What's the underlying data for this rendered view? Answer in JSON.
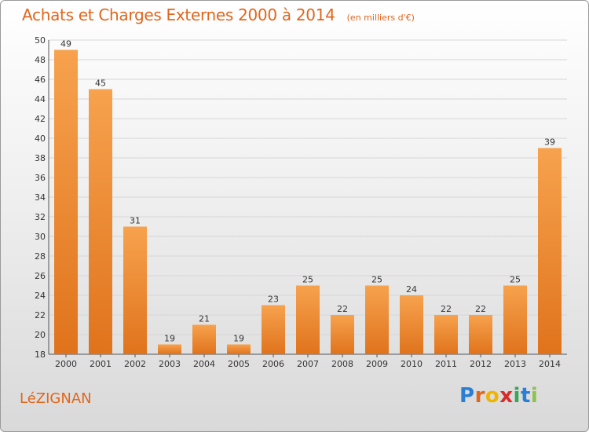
{
  "title": "Achats et Charges Externes 2000 à 2014",
  "unit_note": "(en milliers d'€)",
  "town": "LéZIGNAN",
  "logo": {
    "letters": [
      "P",
      "r",
      "o",
      "x",
      "i",
      "t",
      "i"
    ],
    "colors": [
      "#2a7fd4",
      "#e0661c",
      "#f0b400",
      "#d92b2b",
      "#3aa655",
      "#2a7fd4",
      "#8bc34a"
    ]
  },
  "colors": {
    "bar": "#f08a2e",
    "bar_light": "#f7a65a",
    "title": "#e0661c"
  },
  "chart_data": {
    "type": "bar",
    "categories": [
      "2000",
      "2001",
      "2002",
      "2003",
      "2004",
      "2005",
      "2006",
      "2007",
      "2008",
      "2009",
      "2010",
      "2011",
      "2012",
      "2013",
      "2014"
    ],
    "values": [
      49,
      45,
      31,
      19,
      21,
      19,
      23,
      25,
      22,
      25,
      24,
      22,
      22,
      25,
      39
    ],
    "title": "Achats et Charges Externes 2000 à 2014",
    "subtitle": "(en milliers d'€)",
    "ylim": [
      18,
      50
    ],
    "yticks": [
      18,
      20,
      22,
      24,
      26,
      28,
      30,
      32,
      34,
      36,
      38,
      40,
      42,
      44,
      46,
      48,
      50
    ],
    "grid": true,
    "legend": "none"
  }
}
